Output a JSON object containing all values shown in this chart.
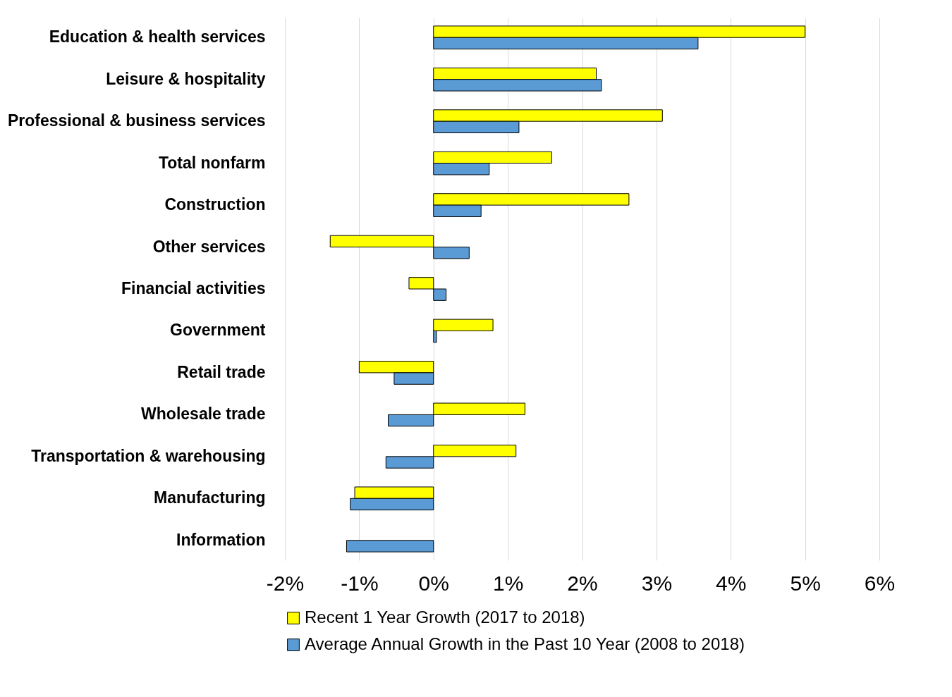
{
  "chart_data": {
    "type": "bar",
    "orientation": "horizontal",
    "categories": [
      "Education & health services",
      "Leisure & hospitality",
      "Professional & business services",
      "Total nonfarm",
      "Construction",
      "Other services",
      "Financial activities",
      "Government",
      "Retail trade",
      "Wholesale trade",
      "Transportation & warehousing",
      "Manufacturing",
      "Information"
    ],
    "series": [
      {
        "name": "Recent 1 Year Growth (2017 to 2018)",
        "color": "#ffff00",
        "values": [
          5.0,
          2.19,
          3.08,
          1.59,
          2.63,
          -1.39,
          -0.33,
          0.8,
          -1.0,
          1.23,
          1.11,
          -1.06,
          null
        ]
      },
      {
        "name": "Average Annual Growth in the Past 10 Year (2008 to 2018)",
        "color": "#5b9bd5",
        "values": [
          3.56,
          2.26,
          1.15,
          0.75,
          0.64,
          0.48,
          0.17,
          0.04,
          -0.53,
          -0.61,
          -0.64,
          -1.12,
          -1.17
        ]
      }
    ],
    "xlim": [
      -2,
      6
    ],
    "xticks": [
      {
        "value": -2,
        "label": "-2%"
      },
      {
        "value": -1,
        "label": "-1%"
      },
      {
        "value": 0,
        "label": "0%"
      },
      {
        "value": 1,
        "label": "1%"
      },
      {
        "value": 2,
        "label": "2%"
      },
      {
        "value": 3,
        "label": "3%"
      },
      {
        "value": 4,
        "label": "4%"
      },
      {
        "value": 5,
        "label": "5%"
      },
      {
        "value": 6,
        "label": "6%"
      }
    ],
    "grid": "x",
    "legend": "bottom left"
  }
}
